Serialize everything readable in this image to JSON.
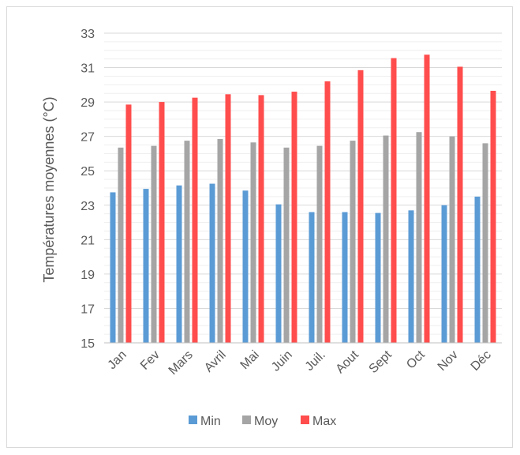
{
  "chart_data": {
    "type": "bar",
    "title": "",
    "xlabel": "",
    "ylabel": "Températures moyennes (°C)",
    "categories": [
      "Jan",
      "Fev",
      "Mars",
      "Avril",
      "Mai",
      "Juin",
      "Juil.",
      "Aout",
      "Sept",
      "Oct",
      "Nov",
      "Déc"
    ],
    "series": [
      {
        "name": "Min",
        "color": "#5b9bd5",
        "values": [
          23.75,
          23.95,
          24.15,
          24.25,
          23.85,
          23.05,
          22.6,
          22.6,
          22.55,
          22.7,
          23.0,
          23.5
        ]
      },
      {
        "name": "Moy",
        "color": "#a5a5a5",
        "values": [
          26.35,
          26.45,
          26.75,
          26.85,
          26.65,
          26.35,
          26.45,
          26.75,
          27.05,
          27.25,
          27.0,
          26.6
        ]
      },
      {
        "name": "Max",
        "color": "#ff4d4d",
        "values": [
          28.85,
          29.0,
          29.25,
          29.45,
          29.4,
          29.6,
          30.2,
          30.85,
          31.55,
          31.75,
          31.05,
          29.65
        ]
      }
    ],
    "ylim": [
      15,
      33
    ],
    "yticks": [
      15,
      17,
      19,
      21,
      23,
      25,
      27,
      29,
      31,
      33
    ],
    "ytick_labels": [
      "15",
      "17",
      "19",
      "21",
      "23",
      "25",
      "27",
      "29",
      "31",
      "33"
    ],
    "minor_gridlines": true,
    "legend_position": "bottom"
  }
}
